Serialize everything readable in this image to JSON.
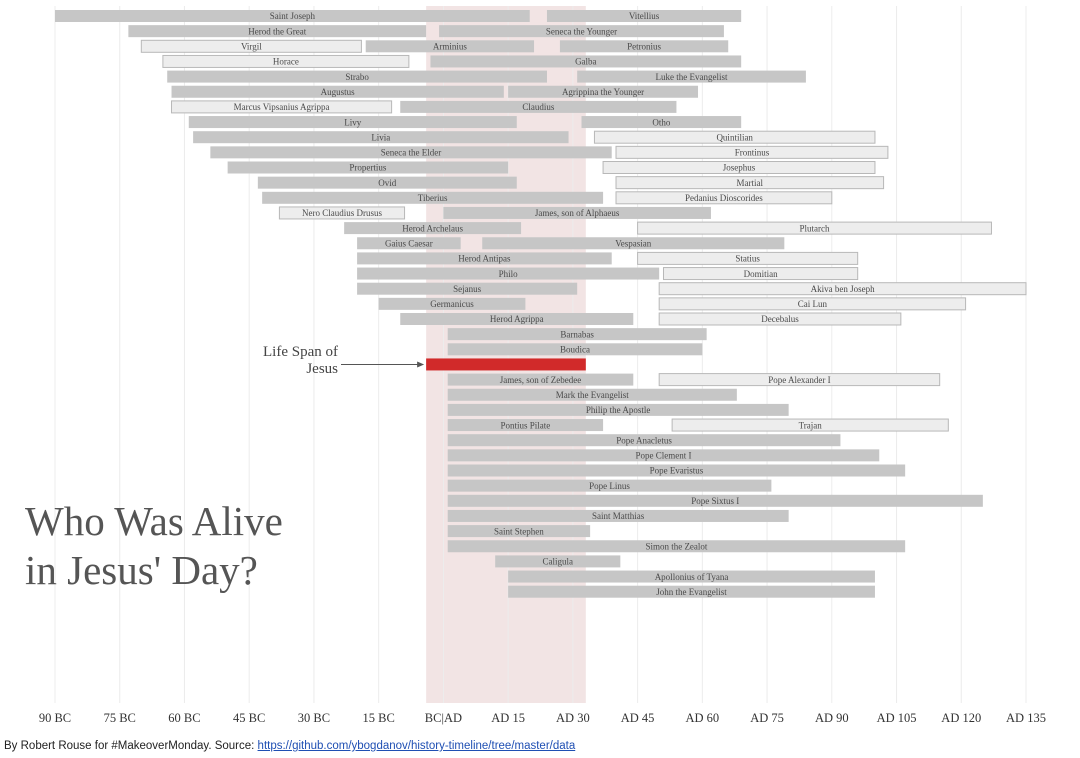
{
  "chart_data": {
    "type": "timeline",
    "title_lines": [
      "Who Was Alive",
      "in Jesus' Day?"
    ],
    "x_axis": {
      "ticks": [
        -90,
        -75,
        -60,
        -45,
        -30,
        -15,
        0,
        15,
        30,
        45,
        60,
        75,
        90,
        105,
        120,
        135
      ],
      "tick_labels": [
        "90 BC",
        "75 BC",
        "60 BC",
        "45 BC",
        "30 BC",
        "15 BC",
        "BC|AD",
        "AD 15",
        "AD 30",
        "AD 45",
        "AD 60",
        "AD 75",
        "AD 90",
        "AD 105",
        "AD 120",
        "AD 135"
      ],
      "range": [
        -90,
        135
      ]
    },
    "highlight": {
      "label": "Jesus",
      "start": -4,
      "end": 33
    },
    "annotation_lines": [
      "Life Span of",
      "Jesus"
    ],
    "lifespans": [
      {
        "name": "Saint Joseph",
        "start": -90,
        "end": 20,
        "style": "dark"
      },
      {
        "name": "Herod the Great",
        "start": -73,
        "end": -4,
        "style": "dark"
      },
      {
        "name": "Virgil",
        "start": -70,
        "end": -19,
        "style": "light"
      },
      {
        "name": "Horace",
        "start": -65,
        "end": -8,
        "style": "light"
      },
      {
        "name": "Strabo",
        "start": -64,
        "end": 24,
        "style": "dark"
      },
      {
        "name": "Augustus",
        "start": -63,
        "end": 14,
        "style": "dark"
      },
      {
        "name": "Marcus Vipsanius Agrippa",
        "start": -63,
        "end": -12,
        "style": "light"
      },
      {
        "name": "Livy",
        "start": -59,
        "end": 17,
        "style": "dark"
      },
      {
        "name": "Livia",
        "start": -58,
        "end": 29,
        "style": "dark"
      },
      {
        "name": "Seneca the Elder",
        "start": -54,
        "end": 39,
        "style": "dark"
      },
      {
        "name": "Propertius",
        "start": -50,
        "end": 15,
        "style": "dark"
      },
      {
        "name": "Ovid",
        "start": -43,
        "end": 17,
        "style": "dark"
      },
      {
        "name": "Tiberius",
        "start": -42,
        "end": 37,
        "style": "dark"
      },
      {
        "name": "Nero Claudius Drusus",
        "start": -38,
        "end": -9,
        "style": "light"
      },
      {
        "name": "Herod Archelaus",
        "start": -23,
        "end": 18,
        "style": "dark"
      },
      {
        "name": "Gaius Caesar",
        "start": -20,
        "end": 4,
        "style": "dark"
      },
      {
        "name": "Herod Antipas",
        "start": -20,
        "end": 39,
        "style": "dark"
      },
      {
        "name": "Philo",
        "start": -20,
        "end": 50,
        "style": "dark"
      },
      {
        "name": "Sejanus",
        "start": -20,
        "end": 31,
        "style": "dark"
      },
      {
        "name": "Arminius",
        "start": -18,
        "end": 21,
        "style": "dark"
      },
      {
        "name": "Germanicus",
        "start": -15,
        "end": 19,
        "style": "dark"
      },
      {
        "name": "Claudius",
        "start": -10,
        "end": 54,
        "style": "dark"
      },
      {
        "name": "Herod Agrippa",
        "start": -10,
        "end": 44,
        "style": "dark"
      },
      {
        "name": "Seneca the Younger",
        "start": -1,
        "end": 65,
        "style": "dark"
      },
      {
        "name": "Galba",
        "start": -3,
        "end": 69,
        "style": "dark"
      },
      {
        "name": "James, son of Alphaeus",
        "start": 0,
        "end": 62,
        "style": "dark"
      },
      {
        "name": "Barnabas",
        "start": 1,
        "end": 61,
        "style": "dark"
      },
      {
        "name": "Boudica",
        "start": 1,
        "end": 60,
        "style": "dark"
      },
      {
        "name": "James, son of Zebedee",
        "start": 1,
        "end": 44,
        "style": "dark"
      },
      {
        "name": "Mark the Evangelist",
        "start": 1,
        "end": 68,
        "style": "dark"
      },
      {
        "name": "Philip the Apostle",
        "start": 1,
        "end": 80,
        "style": "dark"
      },
      {
        "name": "Pontius Pilate",
        "start": 1,
        "end": 37,
        "style": "dark"
      },
      {
        "name": "Pope Anacletus",
        "start": 1,
        "end": 92,
        "style": "dark"
      },
      {
        "name": "Pope Clement I",
        "start": 1,
        "end": 101,
        "style": "dark"
      },
      {
        "name": "Pope Evaristus",
        "start": 1,
        "end": 107,
        "style": "dark"
      },
      {
        "name": "Pope Linus",
        "start": 1,
        "end": 76,
        "style": "dark"
      },
      {
        "name": "Pope Sixtus I",
        "start": 1,
        "end": 125,
        "style": "dark"
      },
      {
        "name": "Saint Matthias",
        "start": 1,
        "end": 80,
        "style": "dark"
      },
      {
        "name": "Saint Stephen",
        "start": 1,
        "end": 34,
        "style": "dark"
      },
      {
        "name": "Simon the Zealot",
        "start": 1,
        "end": 107,
        "style": "dark"
      },
      {
        "name": "Vespasian",
        "start": 9,
        "end": 79,
        "style": "dark"
      },
      {
        "name": "Caligula",
        "start": 12,
        "end": 41,
        "style": "dark"
      },
      {
        "name": "Agrippina the Younger",
        "start": 15,
        "end": 59,
        "style": "dark"
      },
      {
        "name": "Apollonius of Tyana",
        "start": 15,
        "end": 100,
        "style": "dark"
      },
      {
        "name": "John the Evangelist",
        "start": 15,
        "end": 100,
        "style": "dark"
      },
      {
        "name": "Vitellius",
        "start": 24,
        "end": 69,
        "style": "dark"
      },
      {
        "name": "Petronius",
        "start": 27,
        "end": 66,
        "style": "dark"
      },
      {
        "name": "Luke the Evangelist",
        "start": 31,
        "end": 84,
        "style": "dark"
      },
      {
        "name": "Otho",
        "start": 32,
        "end": 69,
        "style": "dark"
      },
      {
        "name": "Quintilian",
        "start": 35,
        "end": 100,
        "style": "light"
      },
      {
        "name": "Josephus",
        "start": 37,
        "end": 100,
        "style": "light"
      },
      {
        "name": "Frontinus",
        "start": 40,
        "end": 103,
        "style": "light"
      },
      {
        "name": "Martial",
        "start": 40,
        "end": 102,
        "style": "light"
      },
      {
        "name": "Pedanius Dioscorides",
        "start": 40,
        "end": 90,
        "style": "light"
      },
      {
        "name": "Plutarch",
        "start": 45,
        "end": 127,
        "style": "light"
      },
      {
        "name": "Statius",
        "start": 45,
        "end": 96,
        "style": "light"
      },
      {
        "name": "Akiva ben Joseph",
        "start": 50,
        "end": 135,
        "style": "light"
      },
      {
        "name": "Cai Lun",
        "start": 50,
        "end": 121,
        "style": "light"
      },
      {
        "name": "Decebalus",
        "start": 50,
        "end": 106,
        "style": "light"
      },
      {
        "name": "Pope Alexander I",
        "start": 50,
        "end": 115,
        "style": "light"
      },
      {
        "name": "Domitian",
        "start": 51,
        "end": 96,
        "style": "light"
      },
      {
        "name": "Trajan",
        "start": 53,
        "end": 117,
        "style": "light"
      }
    ]
  },
  "footer": {
    "text": "By Robert Rouse for #MakeoverMonday. Source: ",
    "link_text": "https://github.com/ybogdanov/history-timeline/tree/master/data"
  },
  "colors": {
    "bar_dark": "#c6c6c6",
    "bar_light": "#ededed",
    "highlight_bar": "#d12a2a",
    "highlight_band": "#f2e4e4"
  }
}
